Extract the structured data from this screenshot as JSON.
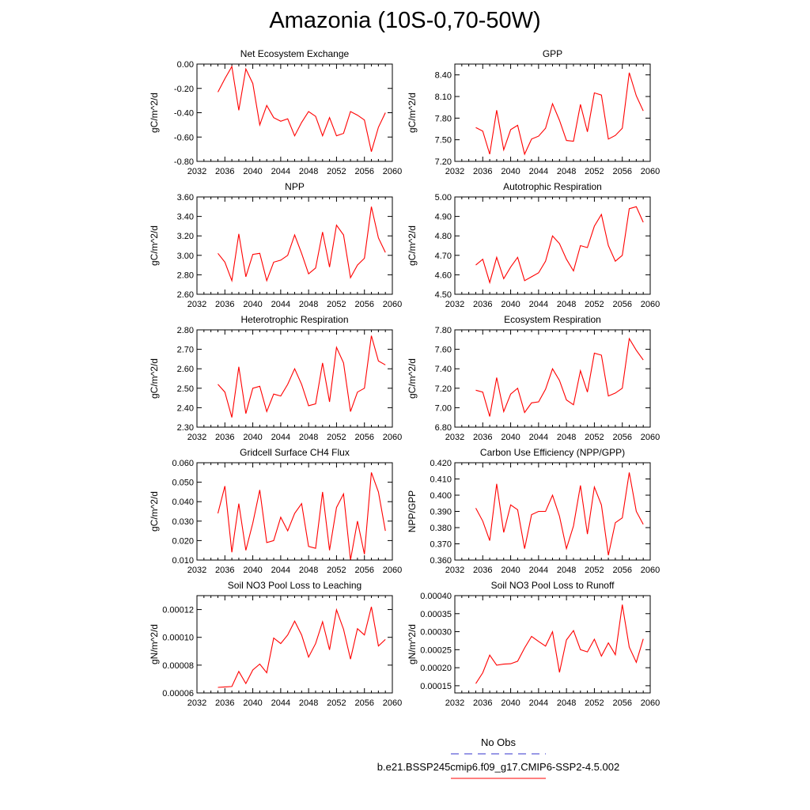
{
  "title": "Amazonia (10S-0,70-50W)",
  "chart_data": [
    {
      "type": "line",
      "title": "Net Ecosystem Exchange",
      "ylabel": "gC/m^2/d",
      "xlim": [
        2032,
        2060
      ],
      "xticks": [
        2032,
        2036,
        2040,
        2044,
        2048,
        2052,
        2056,
        2060
      ],
      "ylim": [
        -0.8,
        0.0
      ],
      "yticks": [
        "-0.80",
        "-0.60",
        "-0.40",
        "-0.20",
        "0.00"
      ],
      "series": [
        {
          "color": "#ff0000",
          "x": [
            2035,
            2036,
            2037,
            2038,
            2039,
            2040,
            2041,
            2042,
            2043,
            2044,
            2045,
            2046,
            2047,
            2048,
            2049,
            2050,
            2051,
            2052,
            2053,
            2054,
            2055,
            2056,
            2057,
            2058,
            2059
          ],
          "values": [
            -0.23,
            -0.12,
            -0.02,
            -0.38,
            -0.04,
            -0.16,
            -0.5,
            -0.34,
            -0.44,
            -0.47,
            -0.45,
            -0.59,
            -0.48,
            -0.39,
            -0.43,
            -0.59,
            -0.44,
            -0.59,
            -0.57,
            -0.39,
            -0.42,
            -0.46,
            -0.72,
            -0.52,
            -0.4
          ]
        }
      ]
    },
    {
      "type": "line",
      "title": "GPP",
      "ylabel": "gC/m^2/d",
      "xlim": [
        2032,
        2060
      ],
      "xticks": [
        2032,
        2036,
        2040,
        2044,
        2048,
        2052,
        2056,
        2060
      ],
      "ylim": [
        7.2,
        8.55
      ],
      "yticks": [
        "7.20",
        "7.50",
        "7.80",
        "8.10",
        "8.40"
      ],
      "series": [
        {
          "color": "#ff0000",
          "x": [
            2035,
            2036,
            2037,
            2038,
            2039,
            2040,
            2041,
            2042,
            2043,
            2044,
            2045,
            2046,
            2047,
            2048,
            2049,
            2050,
            2051,
            2052,
            2053,
            2054,
            2055,
            2056,
            2057,
            2058,
            2059
          ],
          "values": [
            7.67,
            7.62,
            7.3,
            7.91,
            7.36,
            7.64,
            7.7,
            7.3,
            7.51,
            7.55,
            7.66,
            8.0,
            7.77,
            7.49,
            7.48,
            7.99,
            7.61,
            8.15,
            8.12,
            7.51,
            7.56,
            7.66,
            8.43,
            8.11,
            7.9
          ]
        }
      ]
    },
    {
      "type": "line",
      "title": "NPP",
      "ylabel": "gC/m^2/d",
      "xlim": [
        2032,
        2060
      ],
      "xticks": [
        2032,
        2036,
        2040,
        2044,
        2048,
        2052,
        2056,
        2060
      ],
      "ylim": [
        2.6,
        3.6
      ],
      "yticks": [
        "2.60",
        "2.80",
        "3.00",
        "3.20",
        "3.40",
        "3.60"
      ],
      "series": [
        {
          "color": "#ff0000",
          "x": [
            2035,
            2036,
            2037,
            2038,
            2039,
            2040,
            2041,
            2042,
            2043,
            2044,
            2045,
            2046,
            2047,
            2048,
            2049,
            2050,
            2051,
            2052,
            2053,
            2054,
            2055,
            2056,
            2057,
            2058,
            2059
          ],
          "values": [
            3.02,
            2.93,
            2.74,
            3.22,
            2.78,
            3.01,
            3.02,
            2.74,
            2.93,
            2.95,
            3.0,
            3.21,
            3.02,
            2.81,
            2.87,
            3.24,
            2.88,
            3.31,
            3.21,
            2.77,
            2.9,
            2.97,
            3.5,
            3.18,
            3.03
          ]
        }
      ]
    },
    {
      "type": "line",
      "title": "Autotrophic Respiration",
      "ylabel": "gC/m^2/d",
      "xlim": [
        2032,
        2060
      ],
      "xticks": [
        2032,
        2036,
        2040,
        2044,
        2048,
        2052,
        2056,
        2060
      ],
      "ylim": [
        4.5,
        5.0
      ],
      "yticks": [
        "4.50",
        "4.60",
        "4.70",
        "4.80",
        "4.90",
        "5.00"
      ],
      "series": [
        {
          "color": "#ff0000",
          "x": [
            2035,
            2036,
            2037,
            2038,
            2039,
            2040,
            2041,
            2042,
            2043,
            2044,
            2045,
            2046,
            2047,
            2048,
            2049,
            2050,
            2051,
            2052,
            2053,
            2054,
            2055,
            2056,
            2057,
            2058,
            2059
          ],
          "values": [
            4.65,
            4.68,
            4.56,
            4.69,
            4.58,
            4.64,
            4.69,
            4.57,
            4.59,
            4.61,
            4.67,
            4.8,
            4.76,
            4.68,
            4.62,
            4.75,
            4.74,
            4.85,
            4.91,
            4.75,
            4.67,
            4.7,
            4.94,
            4.95,
            4.87
          ]
        }
      ]
    },
    {
      "type": "line",
      "title": "Heterotrophic Respiration",
      "ylabel": "gC/m^2/d",
      "xlim": [
        2032,
        2060
      ],
      "xticks": [
        2032,
        2036,
        2040,
        2044,
        2048,
        2052,
        2056,
        2060
      ],
      "ylim": [
        2.3,
        2.8
      ],
      "yticks": [
        "2.30",
        "2.40",
        "2.50",
        "2.60",
        "2.70",
        "2.80"
      ],
      "series": [
        {
          "color": "#ff0000",
          "x": [
            2035,
            2036,
            2037,
            2038,
            2039,
            2040,
            2041,
            2042,
            2043,
            2044,
            2045,
            2046,
            2047,
            2048,
            2049,
            2050,
            2051,
            2052,
            2053,
            2054,
            2055,
            2056,
            2057,
            2058,
            2059
          ],
          "values": [
            2.52,
            2.48,
            2.35,
            2.61,
            2.37,
            2.5,
            2.51,
            2.38,
            2.47,
            2.46,
            2.52,
            2.6,
            2.52,
            2.41,
            2.42,
            2.63,
            2.43,
            2.71,
            2.63,
            2.38,
            2.48,
            2.5,
            2.77,
            2.64,
            2.62
          ]
        }
      ]
    },
    {
      "type": "line",
      "title": "Ecosystem Respiration",
      "ylabel": "gC/m^2/d",
      "xlim": [
        2032,
        2060
      ],
      "xticks": [
        2032,
        2036,
        2040,
        2044,
        2048,
        2052,
        2056,
        2060
      ],
      "ylim": [
        6.8,
        7.8
      ],
      "yticks": [
        "6.80",
        "7.00",
        "7.20",
        "7.40",
        "7.60",
        "7.80"
      ],
      "series": [
        {
          "color": "#ff0000",
          "x": [
            2035,
            2036,
            2037,
            2038,
            2039,
            2040,
            2041,
            2042,
            2043,
            2044,
            2045,
            2046,
            2047,
            2048,
            2049,
            2050,
            2051,
            2052,
            2053,
            2054,
            2055,
            2056,
            2057,
            2058,
            2059
          ],
          "values": [
            7.18,
            7.16,
            6.91,
            7.31,
            6.96,
            7.14,
            7.2,
            6.95,
            7.05,
            7.06,
            7.19,
            7.4,
            7.28,
            7.08,
            7.03,
            7.38,
            7.16,
            7.56,
            7.54,
            7.12,
            7.15,
            7.2,
            7.71,
            7.59,
            7.49
          ]
        }
      ]
    },
    {
      "type": "line",
      "title": "Gridcell Surface CH4 Flux",
      "ylabel": "gC/m^2/d",
      "xlim": [
        2032,
        2060
      ],
      "xticks": [
        2032,
        2036,
        2040,
        2044,
        2048,
        2052,
        2056,
        2060
      ],
      "ylim": [
        0.01,
        0.06
      ],
      "yticks": [
        "0.010",
        "0.020",
        "0.030",
        "0.040",
        "0.050",
        "0.060"
      ],
      "series": [
        {
          "color": "#ff0000",
          "x": [
            2035,
            2036,
            2037,
            2038,
            2039,
            2040,
            2041,
            2042,
            2043,
            2044,
            2045,
            2046,
            2047,
            2048,
            2049,
            2050,
            2051,
            2052,
            2053,
            2054,
            2055,
            2056,
            2057,
            2058,
            2059
          ],
          "values": [
            0.034,
            0.048,
            0.014,
            0.039,
            0.015,
            0.029,
            0.046,
            0.019,
            0.02,
            0.032,
            0.025,
            0.034,
            0.039,
            0.017,
            0.016,
            0.045,
            0.015,
            0.037,
            0.044,
            0.01,
            0.03,
            0.013,
            0.055,
            0.045,
            0.025
          ]
        }
      ]
    },
    {
      "type": "line",
      "title": "Carbon Use Efficiency (NPP/GPP)",
      "ylabel": "NPP/GPP",
      "xlim": [
        2032,
        2060
      ],
      "xticks": [
        2032,
        2036,
        2040,
        2044,
        2048,
        2052,
        2056,
        2060
      ],
      "ylim": [
        0.36,
        0.42
      ],
      "yticks": [
        "0.360",
        "0.370",
        "0.380",
        "0.390",
        "0.400",
        "0.410",
        "0.420"
      ],
      "series": [
        {
          "color": "#ff0000",
          "x": [
            2035,
            2036,
            2037,
            2038,
            2039,
            2040,
            2041,
            2042,
            2043,
            2044,
            2045,
            2046,
            2047,
            2048,
            2049,
            2050,
            2051,
            2052,
            2053,
            2054,
            2055,
            2056,
            2057,
            2058,
            2059
          ],
          "values": [
            0.392,
            0.384,
            0.372,
            0.407,
            0.377,
            0.394,
            0.391,
            0.367,
            0.388,
            0.39,
            0.39,
            0.4,
            0.387,
            0.367,
            0.381,
            0.406,
            0.376,
            0.405,
            0.394,
            0.363,
            0.383,
            0.386,
            0.414,
            0.39,
            0.382
          ]
        }
      ]
    },
    {
      "type": "line",
      "title": "Soil NO3 Pool Loss to Leaching",
      "ylabel": "gN/m^2/d",
      "xlim": [
        2032,
        2060
      ],
      "xticks": [
        2032,
        2036,
        2040,
        2044,
        2048,
        2052,
        2056,
        2060
      ],
      "ylim": [
        6e-05,
        0.00013
      ],
      "yticks": [
        "0.00006",
        "0.00008",
        "0.00010",
        "0.00012"
      ],
      "series": [
        {
          "color": "#ff0000",
          "x": [
            2035,
            2036,
            2037,
            2038,
            2039,
            2040,
            2041,
            2042,
            2043,
            2044,
            2045,
            2046,
            2047,
            2048,
            2049,
            2050,
            2051,
            2052,
            2053,
            2054,
            2055,
            2056,
            2057,
            2058,
            2059
          ],
          "values": [
            6.4e-05,
            6.43e-05,
            6.46e-05,
            7.55e-05,
            6.68e-05,
            7.65e-05,
            8.08e-05,
            7.45e-05,
            9.95e-05,
            9.55e-05,
            0.0001017,
            0.0001117,
            0.0001017,
            8.58e-05,
            9.55e-05,
            0.0001112,
            9.1e-05,
            0.0001198,
            0.0001058,
            8.43e-05,
            0.0001062,
            0.0001017,
            0.000122,
            9.38e-05,
            9.85e-05
          ]
        }
      ]
    },
    {
      "type": "line",
      "title": "Soil NO3 Pool Loss to Runoff",
      "ylabel": "gN/m^2/d",
      "xlim": [
        2032,
        2060
      ],
      "xticks": [
        2032,
        2036,
        2040,
        2044,
        2048,
        2052,
        2056,
        2060
      ],
      "ylim": [
        0.00013,
        0.0004
      ],
      "yticks": [
        "0.00015",
        "0.00020",
        "0.00025",
        "0.00030",
        "0.00035",
        "0.00040"
      ],
      "series": [
        {
          "color": "#ff0000",
          "x": [
            2035,
            2036,
            2037,
            2038,
            2039,
            2040,
            2041,
            2042,
            2043,
            2044,
            2045,
            2046,
            2047,
            2048,
            2049,
            2050,
            2051,
            2052,
            2053,
            2054,
            2055,
            2056,
            2057,
            2058,
            2059
          ],
          "values": [
            0.000156,
            0.000186,
            0.000235,
            0.000207,
            0.00021,
            0.000211,
            0.000218,
            0.000255,
            0.000287,
            0.000273,
            0.00026,
            0.0003,
            0.000187,
            0.000277,
            0.000303,
            0.00025,
            0.000244,
            0.000279,
            0.000232,
            0.000269,
            0.000236,
            0.000375,
            0.000257,
            0.000215,
            0.00028
          ]
        }
      ]
    }
  ],
  "legend": {
    "entries": [
      {
        "label": "No Obs",
        "color": "#3333cc",
        "style": "dashed"
      },
      {
        "label": "b.e21.BSSP245cmip6.f09_g17.CMIP6-SSP2-4.5.002",
        "color": "#ff0000",
        "style": "solid"
      }
    ]
  }
}
